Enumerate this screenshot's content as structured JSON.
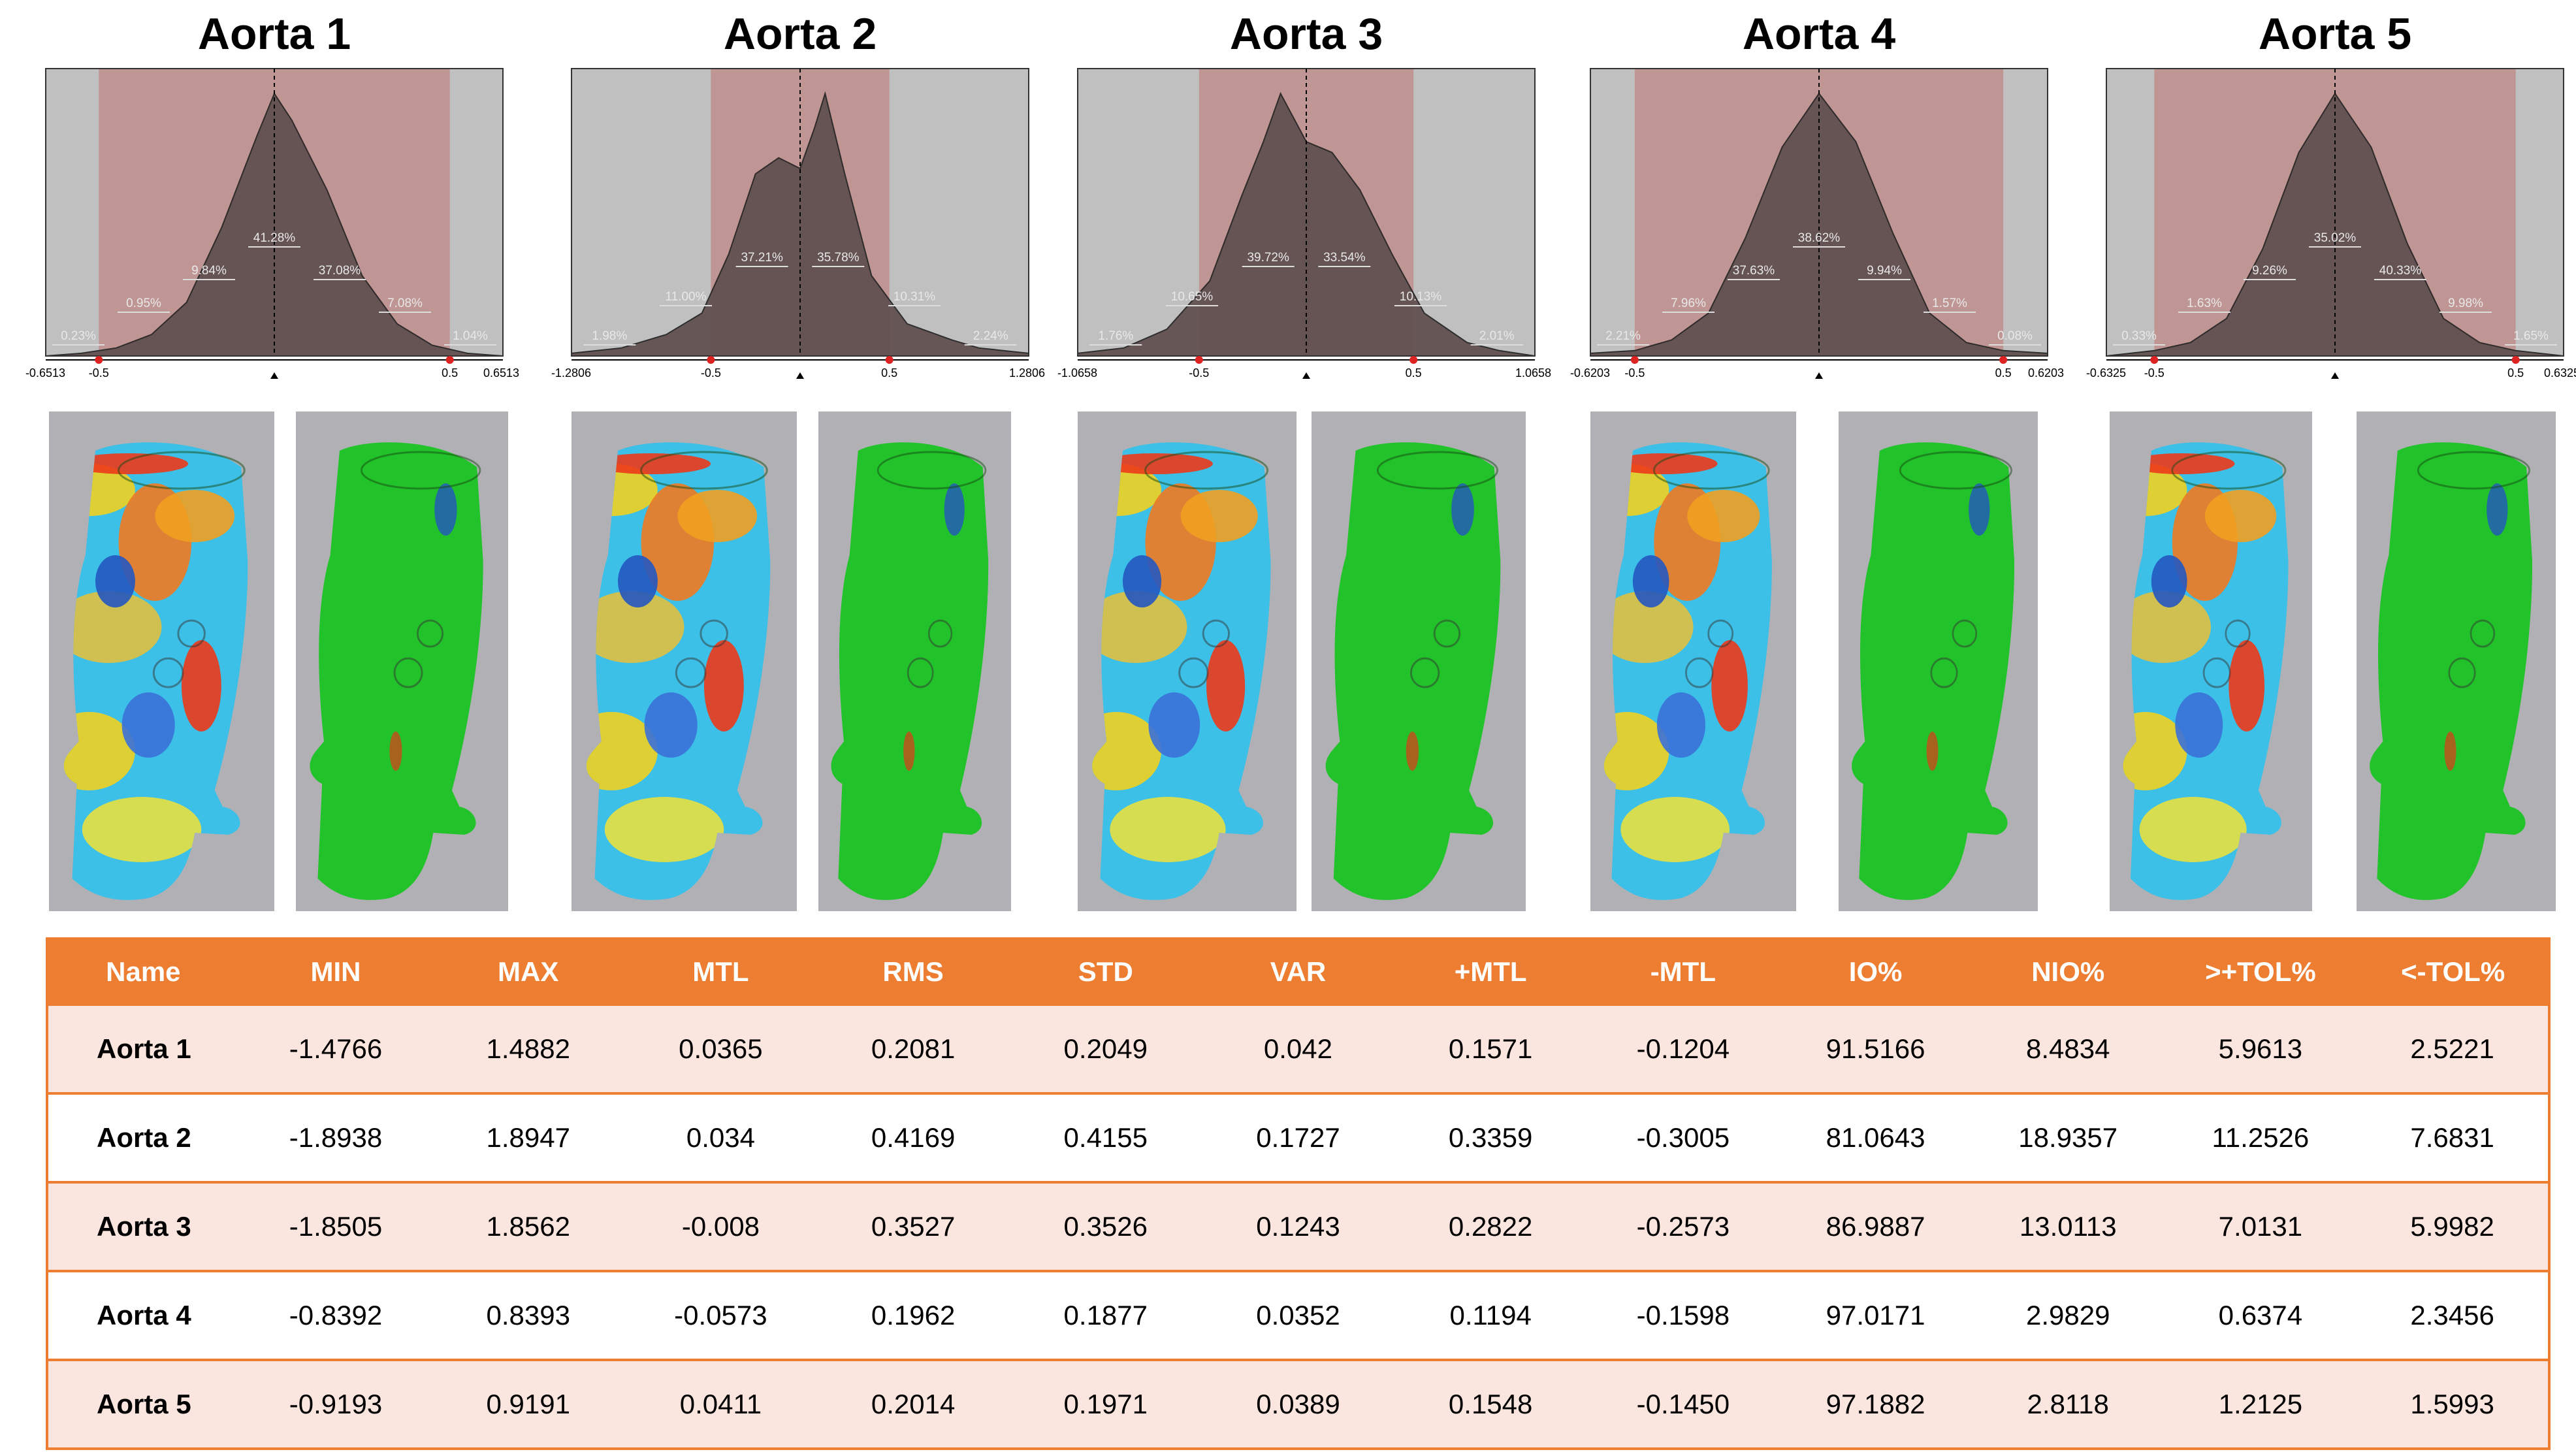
{
  "colors": {
    "accent": "#ed7d31",
    "row_tint": "#fbe5df",
    "tolerance_band": "#c09695",
    "out_of_range": "#c0c0c0",
    "histogram_fill": "#5f4e4e",
    "model_background": "#b0b0b5",
    "in_tolerance": "#22c32a"
  },
  "chart_data": [
    {
      "type": "area",
      "title": "Aorta 1",
      "xlim": [
        -0.6513,
        0.6513
      ],
      "tolerance": [
        -0.5,
        0.5
      ],
      "tick_labels": [
        "-0.6513",
        "-0.5",
        "0.5",
        "0.6513"
      ],
      "x": [
        -0.6513,
        -0.55,
        -0.45,
        -0.35,
        -0.25,
        -0.15,
        -0.05,
        0.0,
        0.05,
        0.15,
        0.25,
        0.35,
        0.45,
        0.55,
        0.6513
      ],
      "values": [
        0,
        1,
        3,
        8,
        20,
        48,
        82,
        98,
        88,
        62,
        30,
        12,
        4,
        1,
        0
      ],
      "bin_percent_labels": [
        "0.23%",
        "0.95%",
        "9.84%",
        "41.28%",
        "37.08%",
        "7.08%",
        "1.04%"
      ]
    },
    {
      "type": "area",
      "title": "Aorta 2",
      "xlim": [
        -1.2806,
        1.2806
      ],
      "tolerance": [
        -0.5,
        0.5
      ],
      "tick_labels": [
        "-1.2806",
        "-0.5",
        "0.5",
        "1.2806"
      ],
      "x": [
        -1.2806,
        -1.0,
        -0.75,
        -0.55,
        -0.4,
        -0.25,
        -0.12,
        0.0,
        0.08,
        0.14,
        0.25,
        0.4,
        0.6,
        0.85,
        1.0,
        1.2806
      ],
      "values": [
        1,
        3,
        8,
        16,
        38,
        68,
        74,
        70,
        85,
        98,
        68,
        30,
        12,
        6,
        3,
        1
      ],
      "bin_percent_labels": [
        "1.98%",
        "11.00%",
        "37.21%",
        "35.78%",
        "10.31%",
        "2.24%"
      ]
    },
    {
      "type": "area",
      "title": "Aorta 3",
      "xlim": [
        -1.0658,
        1.0658
      ],
      "tolerance": [
        -0.5,
        0.5
      ],
      "tick_labels": [
        "-1.0658",
        "-0.5",
        "0.5",
        "1.0658"
      ],
      "x": [
        -1.0658,
        -0.85,
        -0.65,
        -0.45,
        -0.3,
        -0.2,
        -0.12,
        0.0,
        0.12,
        0.25,
        0.4,
        0.55,
        0.75,
        0.9,
        1.0658
      ],
      "values": [
        1,
        3,
        10,
        28,
        60,
        80,
        98,
        80,
        76,
        62,
        38,
        16,
        5,
        2,
        0
      ],
      "bin_percent_labels": [
        "1.76%",
        "10.65%",
        "39.72%",
        "33.54%",
        "10.13%",
        "2.01%"
      ]
    },
    {
      "type": "area",
      "title": "Aorta 4",
      "xlim": [
        -0.6203,
        0.6203
      ],
      "tolerance": [
        -0.5,
        0.5
      ],
      "tick_labels": [
        "-0.6203",
        "-0.5",
        "0.5",
        "0.6203"
      ],
      "x": [
        -0.6203,
        -0.5,
        -0.4,
        -0.3,
        -0.2,
        -0.1,
        0.0,
        0.1,
        0.2,
        0.3,
        0.4,
        0.5,
        0.6203
      ],
      "values": [
        1,
        2,
        6,
        16,
        44,
        78,
        98,
        80,
        46,
        16,
        5,
        2,
        1
      ],
      "bin_percent_labels": [
        "2.21%",
        "7.96%",
        "37.63%",
        "38.62%",
        "9.94%",
        "1.57%",
        "0.08%"
      ]
    },
    {
      "type": "area",
      "title": "Aorta 5",
      "xlim": [
        -0.6325,
        0.6325
      ],
      "tolerance": [
        -0.5,
        0.5
      ],
      "tick_labels": [
        "-0.6325",
        "-0.5",
        "0.5",
        "0.6325"
      ],
      "x": [
        -0.6325,
        -0.5,
        -0.4,
        -0.3,
        -0.2,
        -0.1,
        0.0,
        0.1,
        0.2,
        0.3,
        0.4,
        0.5,
        0.6325
      ],
      "values": [
        0,
        2,
        5,
        14,
        40,
        76,
        98,
        78,
        42,
        14,
        5,
        2,
        0
      ],
      "bin_percent_labels": [
        "0.33%",
        "1.63%",
        "9.26%",
        "35.02%",
        "40.33%",
        "9.98%",
        "1.65%"
      ]
    },
    {
      "type": "table",
      "columns": [
        "Name",
        "MIN",
        "MAX",
        "MTL",
        "RMS",
        "STD",
        "VAR",
        "+MTL",
        "-MTL",
        "IO%",
        "NIO%",
        ">+TOL%",
        "<-TOL%"
      ],
      "rows": [
        [
          "Aorta 1",
          "-1.4766",
          "1.4882",
          "0.0365",
          "0.2081",
          "0.2049",
          "0.042",
          "0.1571",
          "-0.1204",
          "91.5166",
          "8.4834",
          "5.9613",
          "2.5221"
        ],
        [
          "Aorta 2",
          "-1.8938",
          "1.8947",
          "0.034",
          "0.4169",
          "0.4155",
          "0.1727",
          "0.3359",
          "-0.3005",
          "81.0643",
          "18.9357",
          "11.2526",
          "7.6831"
        ],
        [
          "Aorta 3",
          "-1.8505",
          "1.8562",
          "-0.008",
          "0.3527",
          "0.3526",
          "0.1243",
          "0.2822",
          "-0.2573",
          "86.9887",
          "13.0113",
          "7.0131",
          "5.9982"
        ],
        [
          "Aorta 4",
          "-0.8392",
          "0.8393",
          "-0.0573",
          "0.1962",
          "0.1877",
          "0.0352",
          "0.1194",
          "-0.1598",
          "97.0171",
          "2.9829",
          "0.6374",
          "2.3456"
        ],
        [
          "Aorta 5",
          "-0.9193",
          "0.9191",
          "0.0411",
          "0.2014",
          "0.1971",
          "0.0389",
          "0.1548",
          "-0.1450",
          "97.1882",
          "2.8118",
          "1.2125",
          "1.5993"
        ]
      ]
    }
  ]
}
